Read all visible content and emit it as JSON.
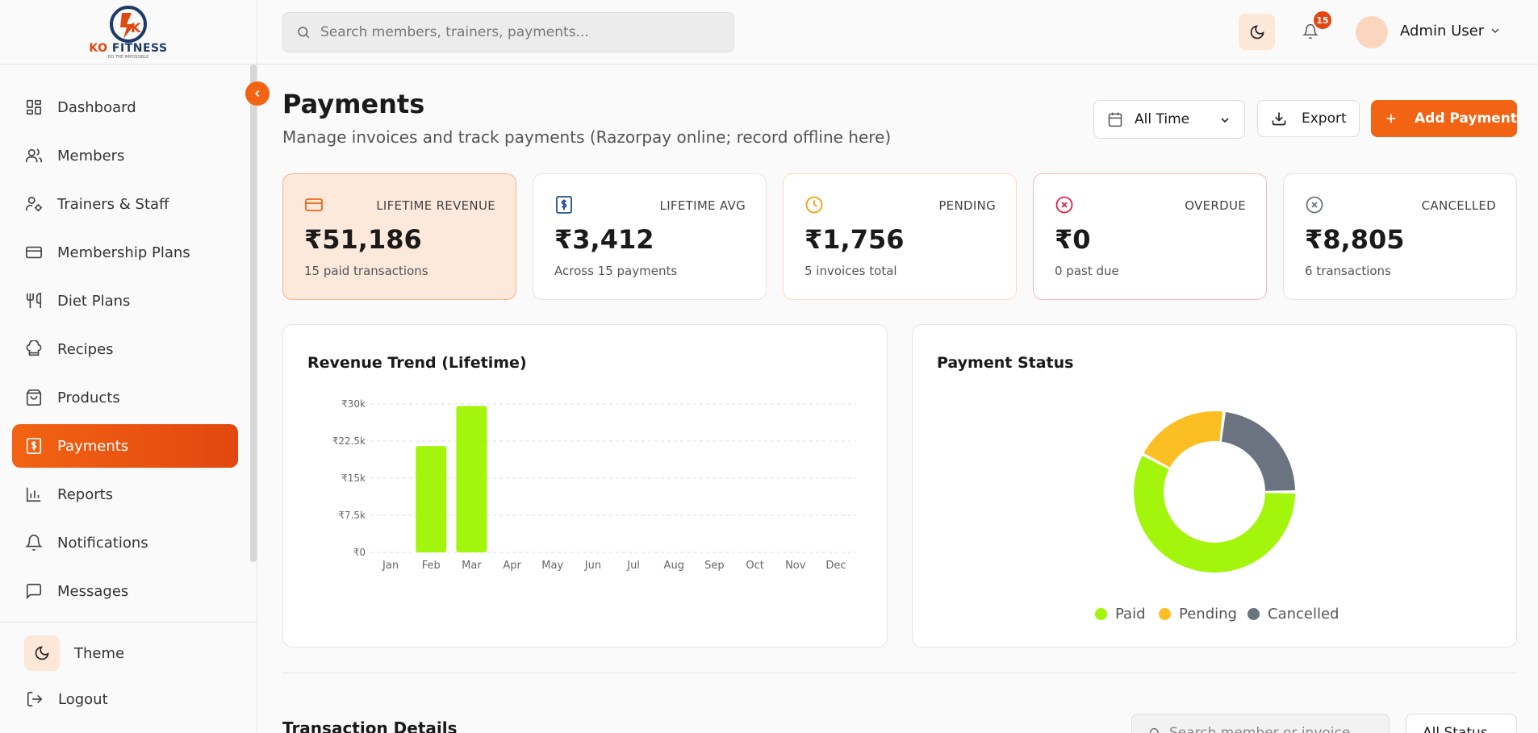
{
  "brand": {
    "name_a": "KO",
    "name_b": "FITNESS",
    "tagline": "DO THE IMPOSSIBLE"
  },
  "sidebar": {
    "items": [
      {
        "label": "Dashboard",
        "icon": "grid-icon"
      },
      {
        "label": "Members",
        "icon": "users-icon"
      },
      {
        "label": "Trainers & Staff",
        "icon": "user-cog-icon"
      },
      {
        "label": "Membership Plans",
        "icon": "card-icon"
      },
      {
        "label": "Diet Plans",
        "icon": "utensils-icon"
      },
      {
        "label": "Recipes",
        "icon": "chef-hat-icon"
      },
      {
        "label": "Products",
        "icon": "bag-icon"
      },
      {
        "label": "Payments",
        "icon": "dollar-receipt-icon"
      },
      {
        "label": "Reports",
        "icon": "bar-chart-icon"
      },
      {
        "label": "Notifications",
        "icon": "bell-icon"
      },
      {
        "label": "Messages",
        "icon": "message-icon"
      }
    ],
    "active": "Payments",
    "theme_label": "Theme",
    "logout_label": "Logout"
  },
  "header": {
    "search_placeholder": "Search members, trainers, payments...",
    "notification_count": "15",
    "user_name": "Admin User"
  },
  "page": {
    "title": "Payments",
    "subtitle": "Manage invoices and track payments (Razorpay online; record offline here)",
    "range_value": "All Time",
    "export_label": "Export",
    "add_label": "Add Payment"
  },
  "stats": [
    {
      "label": "LIFETIME REVENUE",
      "value": "₹51,186",
      "note": "15 paid transactions",
      "color": "#f26313"
    },
    {
      "label": "LIFETIME AVG",
      "value": "₹3,412",
      "note": "Across 15 payments",
      "color": "#1f4e8c"
    },
    {
      "label": "PENDING",
      "value": "₹1,756",
      "note": "5 invoices total",
      "color": "#f59e0b"
    },
    {
      "label": "OVERDUE",
      "value": "₹0",
      "note": "0 past due",
      "color": "#e11d48"
    },
    {
      "label": "CANCELLED",
      "value": "₹8,805",
      "note": "6 transactions",
      "color": "#6b7280"
    }
  ],
  "revenue_panel_title": "Revenue Trend (Lifetime)",
  "status_panel_title": "Payment Status",
  "transactions": {
    "title": "Transaction Details",
    "search_placeholder": "Search member or invoice",
    "status_value": "All Status"
  },
  "chart_data": [
    {
      "type": "bar",
      "title": "Revenue Trend (Lifetime)",
      "categories": [
        "Jan",
        "Feb",
        "Mar",
        "Apr",
        "May",
        "Jun",
        "Jul",
        "Aug",
        "Sep",
        "Oct",
        "Nov",
        "Dec"
      ],
      "values": [
        0,
        21500,
        29600,
        0,
        0,
        0,
        0,
        0,
        0,
        0,
        0,
        0
      ],
      "yticks": [
        "₹0",
        "₹7.5k",
        "₹15k",
        "₹22.5k",
        "₹30k"
      ],
      "ytick_values": [
        0,
        7500,
        15000,
        22500,
        30000
      ],
      "ylim": [
        0,
        30000
      ],
      "grid": true,
      "color": "#a3f50b"
    },
    {
      "type": "pie",
      "title": "Payment Status",
      "labels": [
        "Paid",
        "Pending",
        "Cancelled"
      ],
      "values": [
        15,
        5,
        6
      ],
      "colors": [
        "#a3f50b",
        "#fbbf24",
        "#6b7280"
      ],
      "legend": "bottom"
    }
  ]
}
